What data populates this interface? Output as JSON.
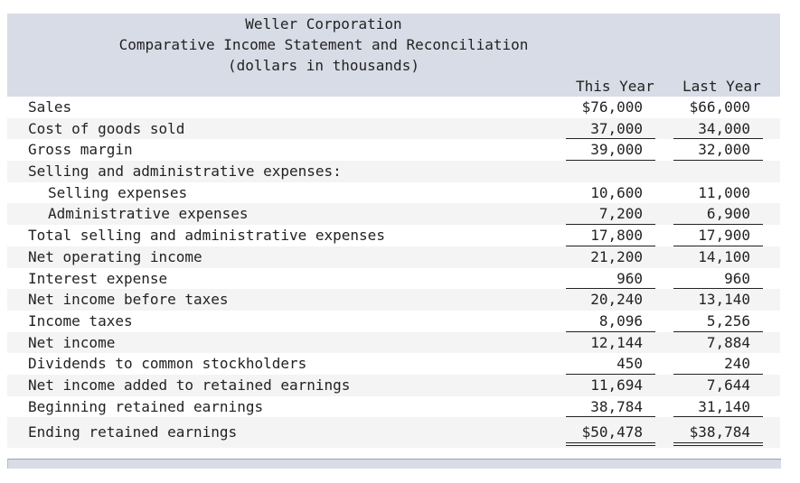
{
  "header": {
    "company": "Weller Corporation",
    "title": "Comparative Income Statement and Reconciliation",
    "units": "(dollars in thousands)",
    "columns": [
      "This Year",
      "Last Year"
    ]
  },
  "rows": [
    {
      "label": "Sales",
      "this_year": "$76,000",
      "last_year": "$66,000"
    },
    {
      "label": "Cost of goods sold",
      "this_year": "37,000",
      "last_year": "34,000"
    },
    {
      "label": "Gross margin",
      "this_year": "39,000",
      "last_year": "32,000"
    },
    {
      "label": "Selling and administrative expenses:",
      "this_year": "",
      "last_year": ""
    },
    {
      "label": "Selling expenses",
      "this_year": "10,600",
      "last_year": "11,000"
    },
    {
      "label": "Administrative expenses",
      "this_year": "7,200",
      "last_year": "6,900"
    },
    {
      "label": "Total selling and administrative expenses",
      "this_year": "17,800",
      "last_year": "17,900"
    },
    {
      "label": "Net operating income",
      "this_year": "21,200",
      "last_year": "14,100"
    },
    {
      "label": "Interest expense",
      "this_year": "960",
      "last_year": "960"
    },
    {
      "label": "Net income before taxes",
      "this_year": "20,240",
      "last_year": "13,140"
    },
    {
      "label": "Income taxes",
      "this_year": "8,096",
      "last_year": "5,256"
    },
    {
      "label": "Net income",
      "this_year": "12,144",
      "last_year": "7,884"
    },
    {
      "label": "Dividends to common stockholders",
      "this_year": "450",
      "last_year": "240"
    },
    {
      "label": "Net income added to retained earnings",
      "this_year": "11,694",
      "last_year": "7,644"
    },
    {
      "label": "Beginning retained earnings",
      "this_year": "38,784",
      "last_year": "31,140"
    },
    {
      "label": "Ending retained earnings",
      "this_year": "$50,478",
      "last_year": "$38,784"
    }
  ],
  "colors": {
    "header_bg": "#d8dce6",
    "alt_row_bg": "#f4f4f4",
    "text": "#222222"
  }
}
